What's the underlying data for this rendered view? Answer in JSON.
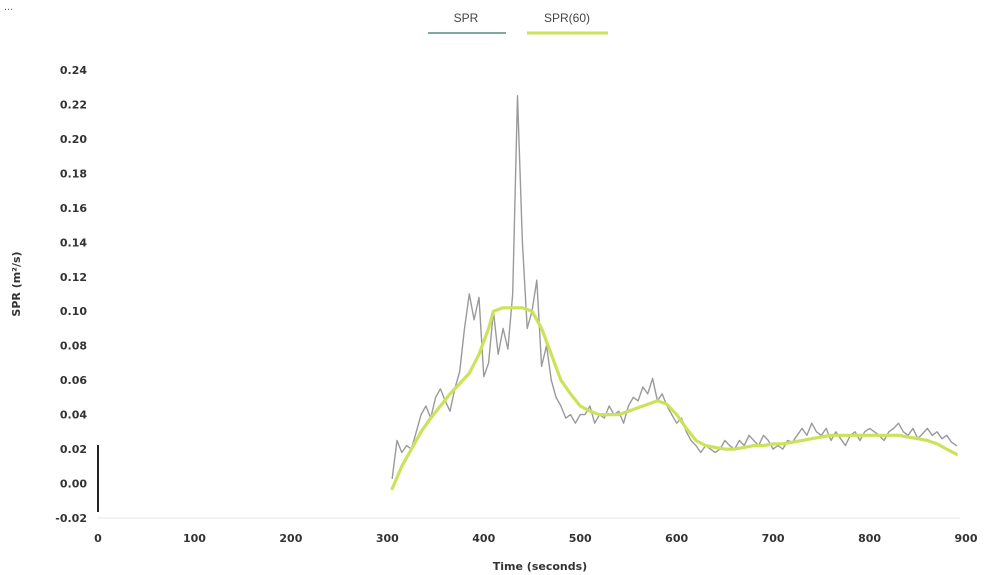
{
  "page": {
    "corner_text": "... "
  },
  "chart_data": {
    "type": "line",
    "title": "",
    "xlabel": "Time (seconds)",
    "ylabel": "SPR (m²/s)",
    "xlim": [
      0,
      900
    ],
    "ylim": [
      -0.02,
      0.24
    ],
    "xticks": [
      "0",
      "100",
      "200",
      "300",
      "400",
      "500",
      "600",
      "700",
      "800",
      "900"
    ],
    "yticks": [
      "-0.02",
      "0.00",
      "0.02",
      "0.04",
      "0.06",
      "0.08",
      "0.10",
      "0.12",
      "0.14",
      "0.16",
      "0.18",
      "0.20",
      "0.22",
      "0.24"
    ],
    "grid": false,
    "legend_position": "top-center",
    "series": [
      {
        "name": "SPR",
        "color": "#9a9a9a",
        "legend_color": "#7fa8a0",
        "x": [
          305,
          310,
          315,
          320,
          325,
          330,
          335,
          340,
          345,
          350,
          355,
          360,
          365,
          370,
          375,
          380,
          385,
          390,
          395,
          400,
          405,
          410,
          415,
          420,
          425,
          430,
          435,
          440,
          445,
          450,
          455,
          460,
          465,
          470,
          475,
          480,
          485,
          490,
          495,
          500,
          505,
          510,
          515,
          520,
          525,
          530,
          535,
          540,
          545,
          550,
          555,
          560,
          565,
          570,
          575,
          580,
          585,
          590,
          595,
          600,
          605,
          610,
          615,
          620,
          625,
          630,
          635,
          640,
          645,
          650,
          655,
          660,
          665,
          670,
          675,
          680,
          685,
          690,
          695,
          700,
          705,
          710,
          715,
          720,
          725,
          730,
          735,
          740,
          745,
          750,
          755,
          760,
          765,
          770,
          775,
          780,
          785,
          790,
          795,
          800,
          805,
          810,
          815,
          820,
          825,
          830,
          835,
          840,
          845,
          850,
          855,
          860,
          865,
          870,
          875,
          880,
          885,
          890
        ],
        "y": [
          0.003,
          0.025,
          0.018,
          0.022,
          0.02,
          0.03,
          0.04,
          0.045,
          0.038,
          0.05,
          0.055,
          0.048,
          0.042,
          0.055,
          0.065,
          0.09,
          0.11,
          0.095,
          0.108,
          0.062,
          0.07,
          0.1,
          0.075,
          0.09,
          0.078,
          0.11,
          0.225,
          0.14,
          0.09,
          0.1,
          0.118,
          0.068,
          0.08,
          0.06,
          0.05,
          0.045,
          0.038,
          0.04,
          0.035,
          0.04,
          0.04,
          0.045,
          0.035,
          0.04,
          0.038,
          0.045,
          0.04,
          0.042,
          0.035,
          0.045,
          0.05,
          0.048,
          0.056,
          0.052,
          0.061,
          0.048,
          0.052,
          0.045,
          0.04,
          0.035,
          0.038,
          0.03,
          0.025,
          0.022,
          0.018,
          0.022,
          0.02,
          0.018,
          0.02,
          0.025,
          0.022,
          0.02,
          0.025,
          0.022,
          0.028,
          0.025,
          0.022,
          0.028,
          0.025,
          0.02,
          0.022,
          0.02,
          0.025,
          0.024,
          0.028,
          0.032,
          0.028,
          0.035,
          0.03,
          0.028,
          0.032,
          0.025,
          0.03,
          0.026,
          0.022,
          0.028,
          0.03,
          0.025,
          0.03,
          0.032,
          0.03,
          0.028,
          0.025,
          0.03,
          0.032,
          0.035,
          0.03,
          0.028,
          0.032,
          0.026,
          0.029,
          0.032,
          0.028,
          0.03,
          0.026,
          0.028,
          0.024,
          0.022
        ]
      },
      {
        "name": "SPR(60)",
        "color": "#cbe35a",
        "x": [
          305,
          315,
          325,
          335,
          345,
          355,
          365,
          375,
          385,
          395,
          405,
          410,
          420,
          430,
          440,
          450,
          460,
          470,
          480,
          490,
          500,
          510,
          520,
          530,
          540,
          550,
          560,
          570,
          580,
          590,
          600,
          610,
          620,
          630,
          640,
          650,
          660,
          670,
          680,
          690,
          700,
          710,
          720,
          730,
          740,
          750,
          760,
          770,
          780,
          790,
          800,
          810,
          820,
          830,
          840,
          850,
          860,
          870,
          880,
          890
        ],
        "y": [
          -0.003,
          0.01,
          0.02,
          0.03,
          0.038,
          0.045,
          0.052,
          0.058,
          0.064,
          0.075,
          0.09,
          0.1,
          0.102,
          0.102,
          0.102,
          0.1,
          0.09,
          0.075,
          0.06,
          0.052,
          0.045,
          0.042,
          0.04,
          0.04,
          0.04,
          0.042,
          0.044,
          0.046,
          0.048,
          0.046,
          0.04,
          0.032,
          0.025,
          0.022,
          0.021,
          0.02,
          0.02,
          0.021,
          0.022,
          0.022,
          0.023,
          0.023,
          0.024,
          0.025,
          0.026,
          0.027,
          0.028,
          0.028,
          0.028,
          0.028,
          0.028,
          0.028,
          0.028,
          0.028,
          0.027,
          0.026,
          0.025,
          0.023,
          0.02,
          0.017
        ]
      }
    ]
  }
}
